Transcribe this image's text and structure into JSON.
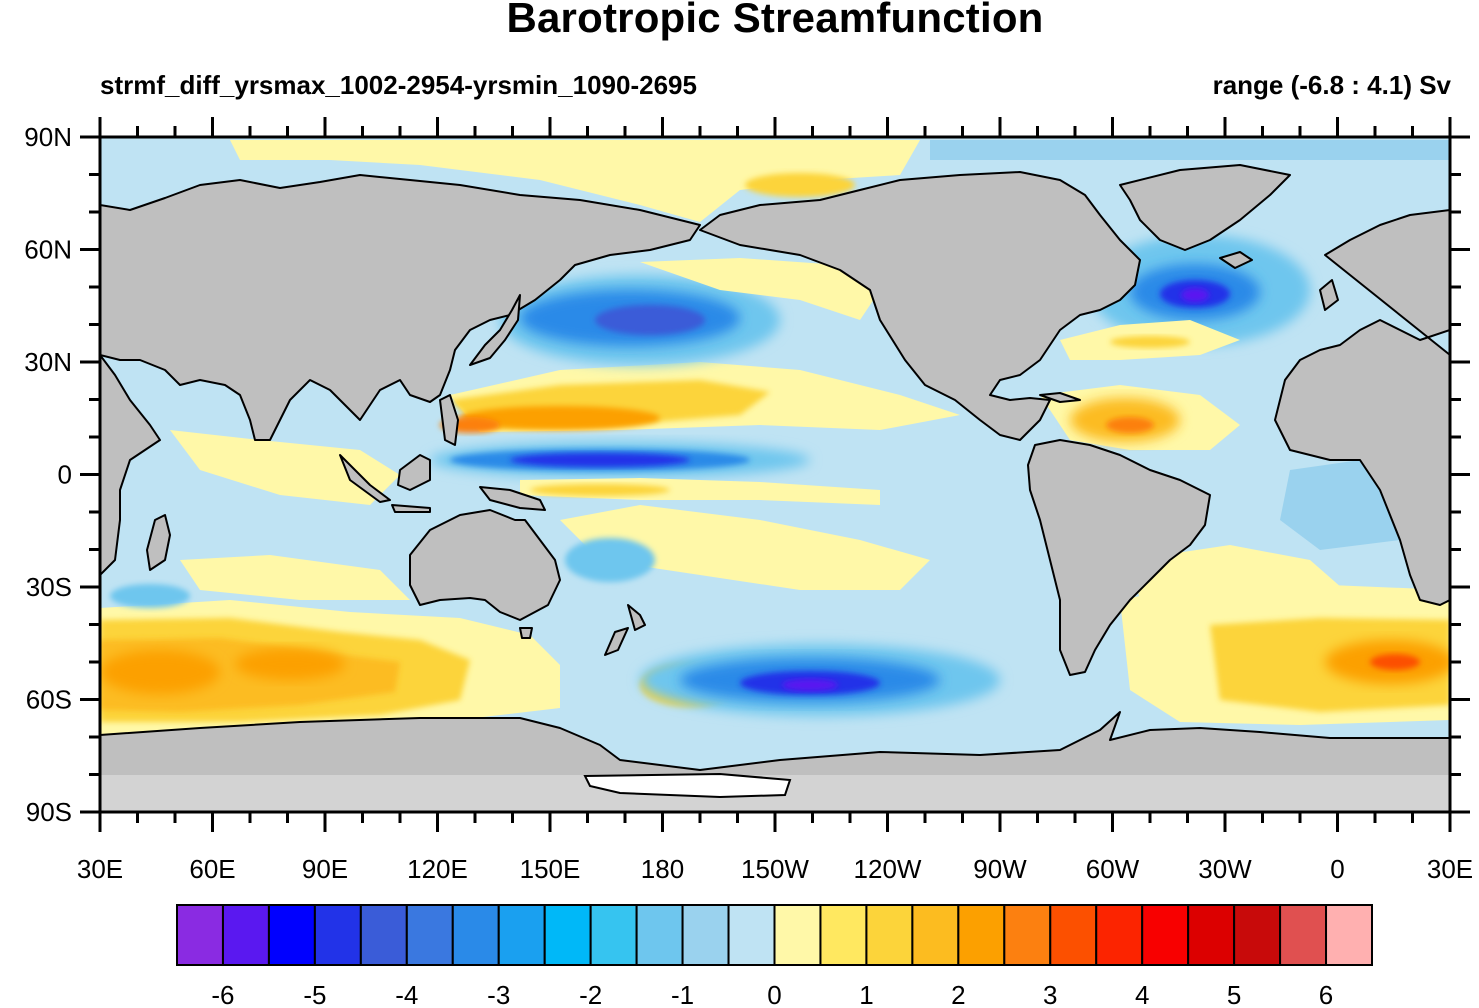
{
  "header": {
    "title": "Barotropic Streamfunction",
    "subtitle_left": "strmf_diff_yrsmax_1002-2954-yrsmin_1090-2695",
    "subtitle_right": "range (-6.8 : 4.1) Sv"
  },
  "map": {
    "projection": "cylindrical-equidistant",
    "lon_range": [
      30,
      390
    ],
    "lat_range": [
      -90,
      90
    ],
    "lat_labels": [
      "90N",
      "60N",
      "30N",
      "0",
      "30S",
      "60S",
      "90S"
    ],
    "lon_labels": [
      "30E",
      "60E",
      "90E",
      "120E",
      "150E",
      "180",
      "150W",
      "120W",
      "90W",
      "60W",
      "30W",
      "0",
      "30E"
    ],
    "land_color": "#bfbfbf",
    "missing_color": "#d3d3d3"
  },
  "colorbar": {
    "colors": [
      "#8a2be2",
      "#5a18f0",
      "#0000ff",
      "#2233e8",
      "#3a5cd8",
      "#3a78e0",
      "#2a8ae8",
      "#1aa0f0",
      "#00b8f8",
      "#36c4f0",
      "#6ec6ee",
      "#9ad2ee",
      "#bfe3f3",
      "#fff8a8",
      "#ffe860",
      "#fcd43a",
      "#fcbc20",
      "#fca000",
      "#fc8010",
      "#fc5000",
      "#fc2400",
      "#f80000",
      "#dc0000",
      "#c80a0a",
      "#e05050",
      "#ffb0b0"
    ],
    "labels": [
      "-6",
      "-5",
      "-4",
      "-3",
      "-2",
      "-1",
      "0",
      "1",
      "2",
      "3",
      "4",
      "5",
      "6"
    ],
    "levels": [
      -6.5,
      -6,
      -5.5,
      -5,
      -4.5,
      -4,
      -3.5,
      -3,
      -2.5,
      -2,
      -1.5,
      -1,
      -0.5,
      0,
      0.5,
      1,
      1.5,
      2,
      2.5,
      3,
      3.5,
      4,
      4.5,
      5,
      5.5,
      6,
      6.5
    ]
  },
  "field": {
    "units": "Sv",
    "range": [
      -6.8,
      4.1
    ]
  }
}
